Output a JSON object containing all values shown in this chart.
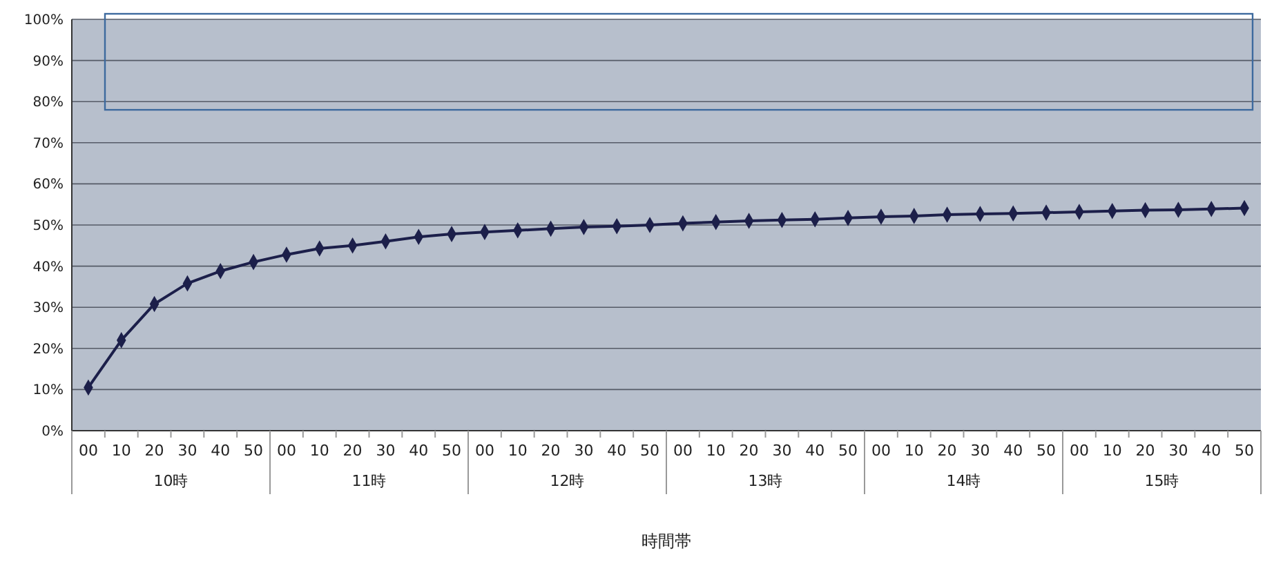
{
  "chart_data": {
    "type": "line",
    "xlabel": "時間帯",
    "categories": [
      "00",
      "10",
      "20",
      "30",
      "40",
      "50",
      "00",
      "10",
      "20",
      "30",
      "40",
      "50",
      "00",
      "10",
      "20",
      "30",
      "40",
      "50",
      "00",
      "10",
      "20",
      "30",
      "40",
      "50",
      "00",
      "10",
      "20",
      "30",
      "40",
      "50",
      "00",
      "10",
      "20",
      "30",
      "40",
      "50"
    ],
    "annotations": [
      "10時",
      "11時",
      "12時",
      "13時",
      "14時",
      "15時"
    ],
    "series": [
      {
        "color": "#1c1f4a",
        "values": [
          10.5,
          22,
          30.8,
          35.8,
          38.8,
          41,
          42.8,
          44.3,
          45,
          46,
          47.1,
          47.8,
          48.3,
          48.7,
          49.1,
          49.5,
          49.7,
          50,
          50.4,
          50.7,
          51,
          51.2,
          51.4,
          51.7,
          52,
          52.2,
          52.5,
          52.7,
          52.8,
          53,
          53.2,
          53.4,
          53.6,
          53.7,
          53.9,
          54.1
        ]
      }
    ],
    "ylim": [
      0,
      100
    ],
    "yticks": [
      {
        "value": 0,
        "label": "0%"
      },
      {
        "value": 10,
        "label": "10%"
      },
      {
        "value": 20,
        "label": "20%"
      },
      {
        "value": 30,
        "label": "30%"
      },
      {
        "value": 40,
        "label": "40%"
      },
      {
        "value": 50,
        "label": "50%"
      },
      {
        "value": 60,
        "label": "60%"
      },
      {
        "value": 70,
        "label": "70%"
      },
      {
        "value": 80,
        "label": "80%"
      },
      {
        "value": 90,
        "label": "90%"
      },
      {
        "value": 100,
        "label": "100%"
      }
    ],
    "grid": "y",
    "marker": "diamond",
    "line_style": "solid"
  }
}
